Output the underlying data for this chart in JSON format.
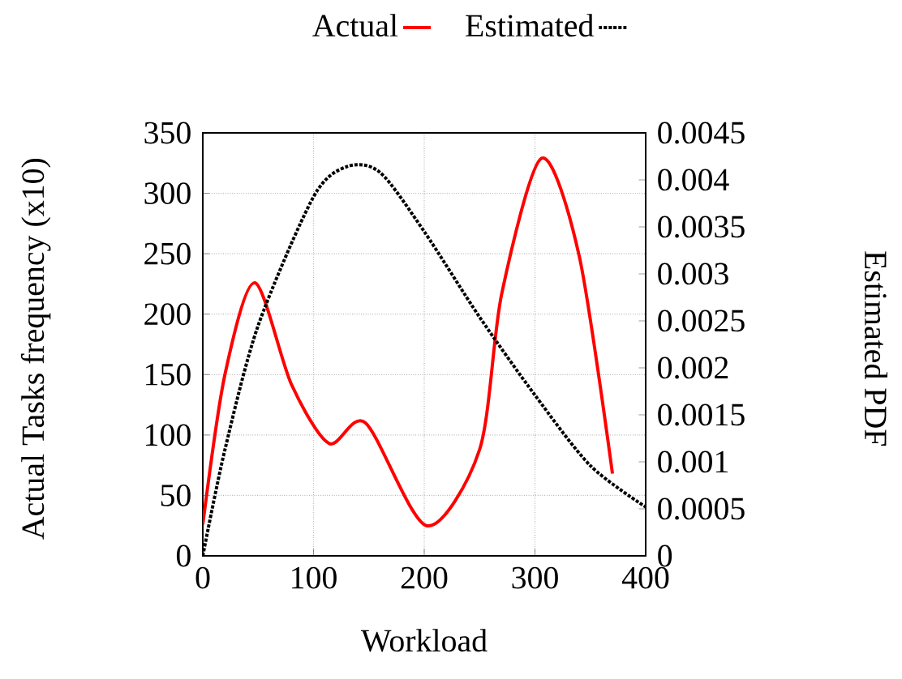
{
  "chart_data": {
    "type": "line",
    "xlabel": "Workload",
    "ylabel": "Actual Tasks frequency (x10)",
    "y2label": "Estimated PDF",
    "xlim": [
      0,
      400
    ],
    "xticks": [
      0,
      100,
      200,
      300,
      400
    ],
    "ylim": [
      0,
      350
    ],
    "yticks": [
      0,
      50,
      100,
      150,
      200,
      250,
      300,
      350
    ],
    "y2lim": [
      0,
      0.0045
    ],
    "y2ticks": [
      0,
      0.0005,
      0.001,
      0.0015,
      0.002,
      0.0025,
      0.003,
      0.0035,
      0.004,
      0.0045
    ],
    "grid": true,
    "legend": "top",
    "series": [
      {
        "name": "Actual",
        "color": "#ff0000",
        "line_style": "solid",
        "x": [
          0,
          20,
          47,
          80,
          114,
          147,
          202,
          250,
          270,
          306,
          340,
          370
        ],
        "values": [
          26,
          150,
          226,
          142,
          93,
          110,
          25,
          88,
          217,
          329,
          248,
          68
        ]
      },
      {
        "name": "Estimated",
        "color": "#000000",
        "line_style": "dotted",
        "axis": "y2",
        "x": [
          0,
          20,
          50,
          100,
          130,
          160,
          200,
          250,
          300,
          350,
          400
        ],
        "values": [
          0,
          0.00113,
          0.00245,
          0.00382,
          0.00414,
          0.00408,
          0.00345,
          0.00254,
          0.00171,
          0.00096,
          0.00052
        ]
      }
    ]
  }
}
